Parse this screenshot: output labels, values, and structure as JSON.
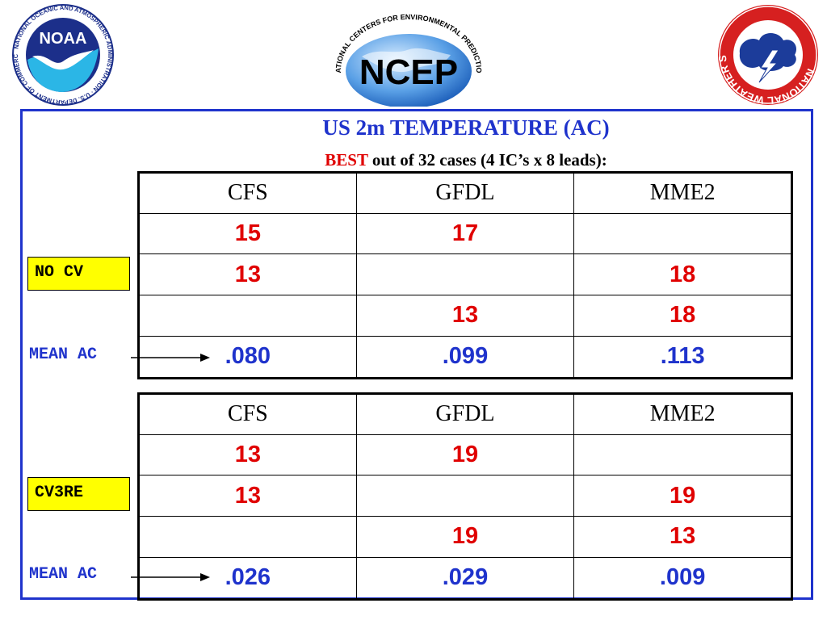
{
  "logos": {
    "noaa": {
      "text": "NOAA",
      "ring_text": "NATIONAL OCEANIC AND ATMOSPHERIC ADMINISTRATION · U.S. DEPARTMENT OF COMMERCE"
    },
    "ncep": {
      "text": "NCEP",
      "ring_text": "NATIONAL CENTERS FOR ENVIRONMENTAL PREDICTION"
    },
    "nws": {
      "ring_text": "NATIONAL WEATHER SERVICE"
    }
  },
  "title": "US 2m TEMPERATURE (AC)",
  "subtitle": {
    "best": "BEST",
    "rest": " out of 32 cases (4 IC’s x 8 leads):"
  },
  "tables": [
    {
      "tag": "NO CV",
      "mean_label": "MEAN AC",
      "columns": [
        "CFS",
        "GFDL",
        "MME2"
      ],
      "rows": [
        [
          "15",
          "17",
          ""
        ],
        [
          "13",
          "",
          "18"
        ],
        [
          "",
          "13",
          "18"
        ]
      ],
      "mean": [
        ".080",
        ".099",
        ".113"
      ]
    },
    {
      "tag": "CV3RE",
      "mean_label": "MEAN AC",
      "columns": [
        "CFS",
        "GFDL",
        "MME2"
      ],
      "rows": [
        [
          "13",
          "19",
          ""
        ],
        [
          "13",
          "",
          "19"
        ],
        [
          "",
          "19",
          "13"
        ]
      ],
      "mean": [
        ".026",
        ".029",
        ".009"
      ]
    }
  ],
  "colors": {
    "accent_blue": "#1f33cc",
    "count_red": "#e00000",
    "tag_yellow": "#ffff00"
  }
}
